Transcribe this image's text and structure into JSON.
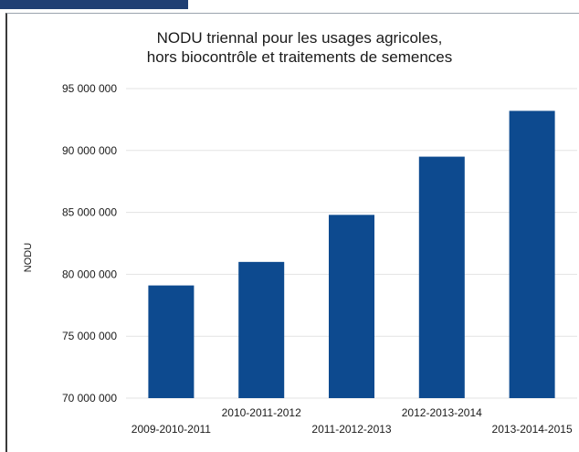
{
  "chart_data": {
    "type": "bar",
    "title_lines": [
      "NODU triennal pour les usages agricoles,",
      "hors biocontrôle et traitements de semences"
    ],
    "xlabel": "",
    "ylabel": "NODU",
    "categories": [
      "2009-2010-2011",
      "2010-2011-2012",
      "2011-2012-2013",
      "2012-2013-2014",
      "2013-2014-2015"
    ],
    "values": [
      79100000,
      81000000,
      84800000,
      89500000,
      93200000
    ],
    "ylim": [
      70000000,
      95000000
    ],
    "yticks": [
      70000000,
      75000000,
      80000000,
      85000000,
      90000000,
      95000000
    ],
    "ytick_labels": [
      "70 000 000",
      "75 000 000",
      "80 000 000",
      "85 000 000",
      "90 000 000",
      "95 000 000"
    ],
    "grid": true,
    "bar_color": "#0d4a8f",
    "grid_color": "#e3e3e3",
    "accent_band_color": "#1f3f73"
  }
}
